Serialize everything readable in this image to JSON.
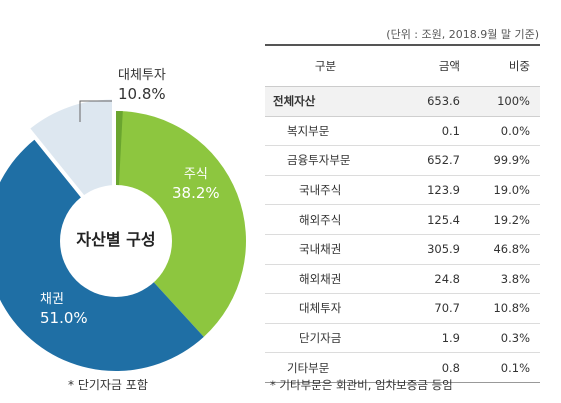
{
  "chart_data": {
    "type": "pie",
    "title": "",
    "center_label": "자산별 구성",
    "slices": [
      {
        "name": "주식",
        "value": 38.2,
        "label": "38.2%",
        "color": "#8dc63f"
      },
      {
        "name": "채권",
        "value": 51.0,
        "label": "51.0%",
        "color": "#1f6fa5"
      },
      {
        "name": "대체투자",
        "value": 10.8,
        "label": "10.8%",
        "color": "#dde7f0"
      }
    ],
    "accent_colors": {
      "stock_dark": "#6aa52f",
      "callout_line": "#666666"
    },
    "footnote": "* 단기자금 포함"
  },
  "table": {
    "unit_note": "(단위 : 조원, 2018.9월 말 기준)",
    "headers": [
      "구분",
      "금액",
      "비중"
    ],
    "rows": [
      {
        "name": "전체자산",
        "amount": "653.6",
        "share": "100%"
      },
      {
        "name": "복지부문",
        "amount": "0.1",
        "share": "0.0%"
      },
      {
        "name": "금융투자부문",
        "amount": "652.7",
        "share": "99.9%"
      },
      {
        "name": "국내주식",
        "amount": "123.9",
        "share": "19.0%"
      },
      {
        "name": "해외주식",
        "amount": "125.4",
        "share": "19.2%"
      },
      {
        "name": "국내채권",
        "amount": "305.9",
        "share": "46.8%"
      },
      {
        "name": "해외채권",
        "amount": "24.8",
        "share": "3.8%"
      },
      {
        "name": "대체투자",
        "amount": "70.7",
        "share": "10.8%"
      },
      {
        "name": "단기자금",
        "amount": "1.9",
        "share": "0.3%"
      },
      {
        "name": "기타부문",
        "amount": "0.8",
        "share": "0.1%"
      }
    ],
    "footnote": "* 기타부문은 회관비, 임차보증금 등임"
  }
}
